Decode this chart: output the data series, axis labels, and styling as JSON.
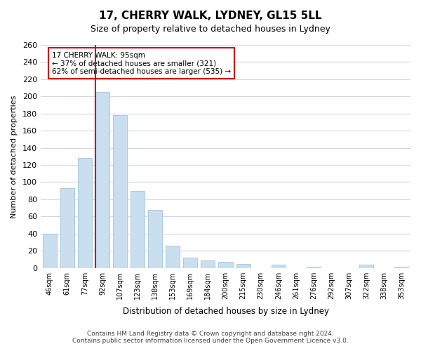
{
  "title": "17, CHERRY WALK, LYDNEY, GL15 5LL",
  "subtitle": "Size of property relative to detached houses in Lydney",
  "xlabel": "Distribution of detached houses by size in Lydney",
  "ylabel": "Number of detached properties",
  "categories": [
    "46sqm",
    "61sqm",
    "77sqm",
    "92sqm",
    "107sqm",
    "123sqm",
    "138sqm",
    "153sqm",
    "169sqm",
    "184sqm",
    "200sqm",
    "215sqm",
    "230sqm",
    "246sqm",
    "261sqm",
    "276sqm",
    "292sqm",
    "307sqm",
    "322sqm",
    "338sqm",
    "353sqm"
  ],
  "values": [
    40,
    93,
    128,
    205,
    178,
    90,
    68,
    26,
    12,
    9,
    7,
    5,
    0,
    4,
    0,
    1,
    0,
    0,
    4,
    0,
    1
  ],
  "bar_color": "#c9dff0",
  "bar_edge_color": "#aac8e0",
  "highlight_index": 3,
  "vline_x": 3,
  "vline_color": "#cc0000",
  "box_text_line1": "17 CHERRY WALK: 95sqm",
  "box_text_line2": "← 37% of detached houses are smaller (321)",
  "box_text_line3": "62% of semi-detached houses are larger (535) →",
  "box_color": "#cc0000",
  "ylim": [
    0,
    260
  ],
  "yticks": [
    0,
    20,
    40,
    60,
    80,
    100,
    120,
    140,
    160,
    180,
    200,
    220,
    240,
    260
  ],
  "footer_line1": "Contains HM Land Registry data © Crown copyright and database right 2024.",
  "footer_line2": "Contains public sector information licensed under the Open Government Licence v3.0.",
  "bg_color": "#ffffff",
  "grid_color": "#d0d8e8"
}
